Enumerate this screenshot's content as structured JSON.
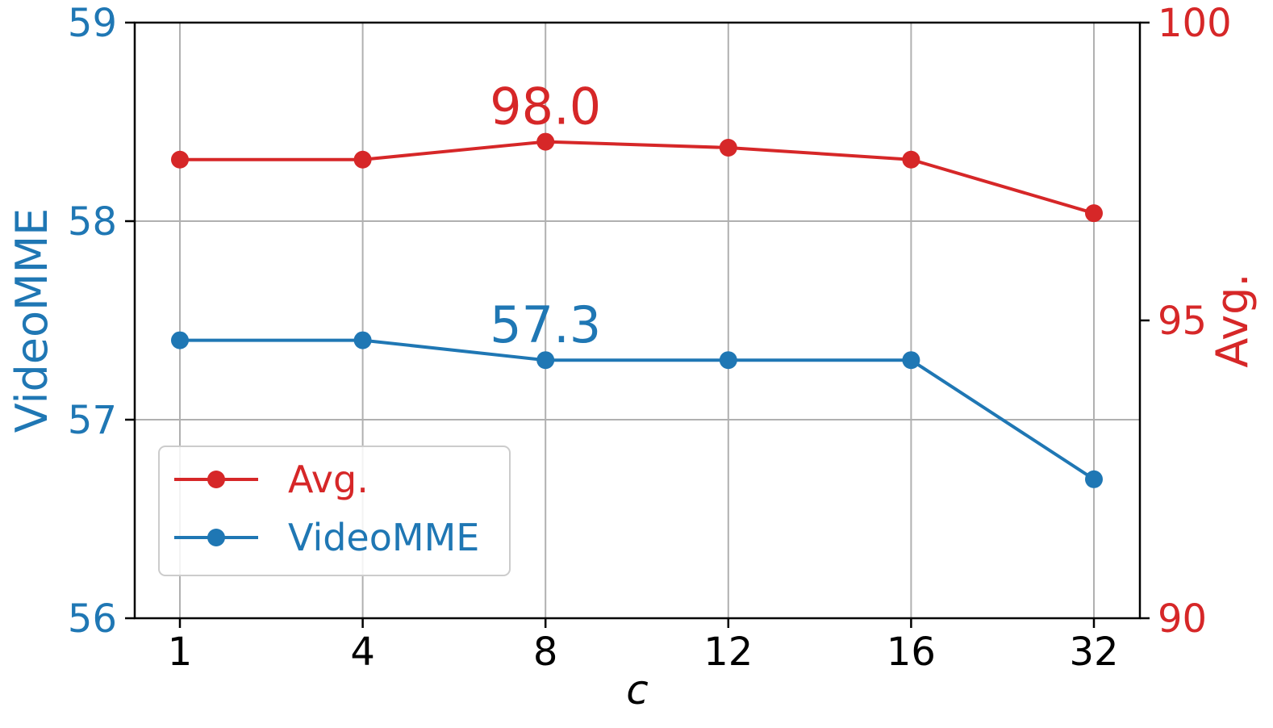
{
  "chart_data": {
    "type": "line",
    "categories": [
      "1",
      "4",
      "8",
      "12",
      "16",
      "32"
    ],
    "xlabel": "c",
    "left_axis": {
      "label": "VideoMME",
      "ylim": [
        56,
        59
      ],
      "ticks": [
        "56",
        "57",
        "58",
        "59"
      ],
      "color": "#1f77b4"
    },
    "right_axis": {
      "label": "Avg.",
      "ylim": [
        90,
        100
      ],
      "ticks": [
        "90",
        "95",
        "100"
      ],
      "color": "#d62728"
    },
    "series": [
      {
        "name": "Avg.",
        "axis": "right",
        "color": "#d62728",
        "values": [
          97.7,
          97.7,
          98.0,
          97.9,
          97.7,
          96.8
        ],
        "annotation": {
          "index": 2,
          "text": "98.0"
        }
      },
      {
        "name": "VideoMME",
        "axis": "left",
        "color": "#1f77b4",
        "values": [
          57.4,
          57.4,
          57.3,
          57.3,
          57.3,
          56.7
        ],
        "annotation": {
          "index": 2,
          "text": "57.3"
        }
      }
    ],
    "grid": true,
    "legend_position": "lower-left"
  }
}
